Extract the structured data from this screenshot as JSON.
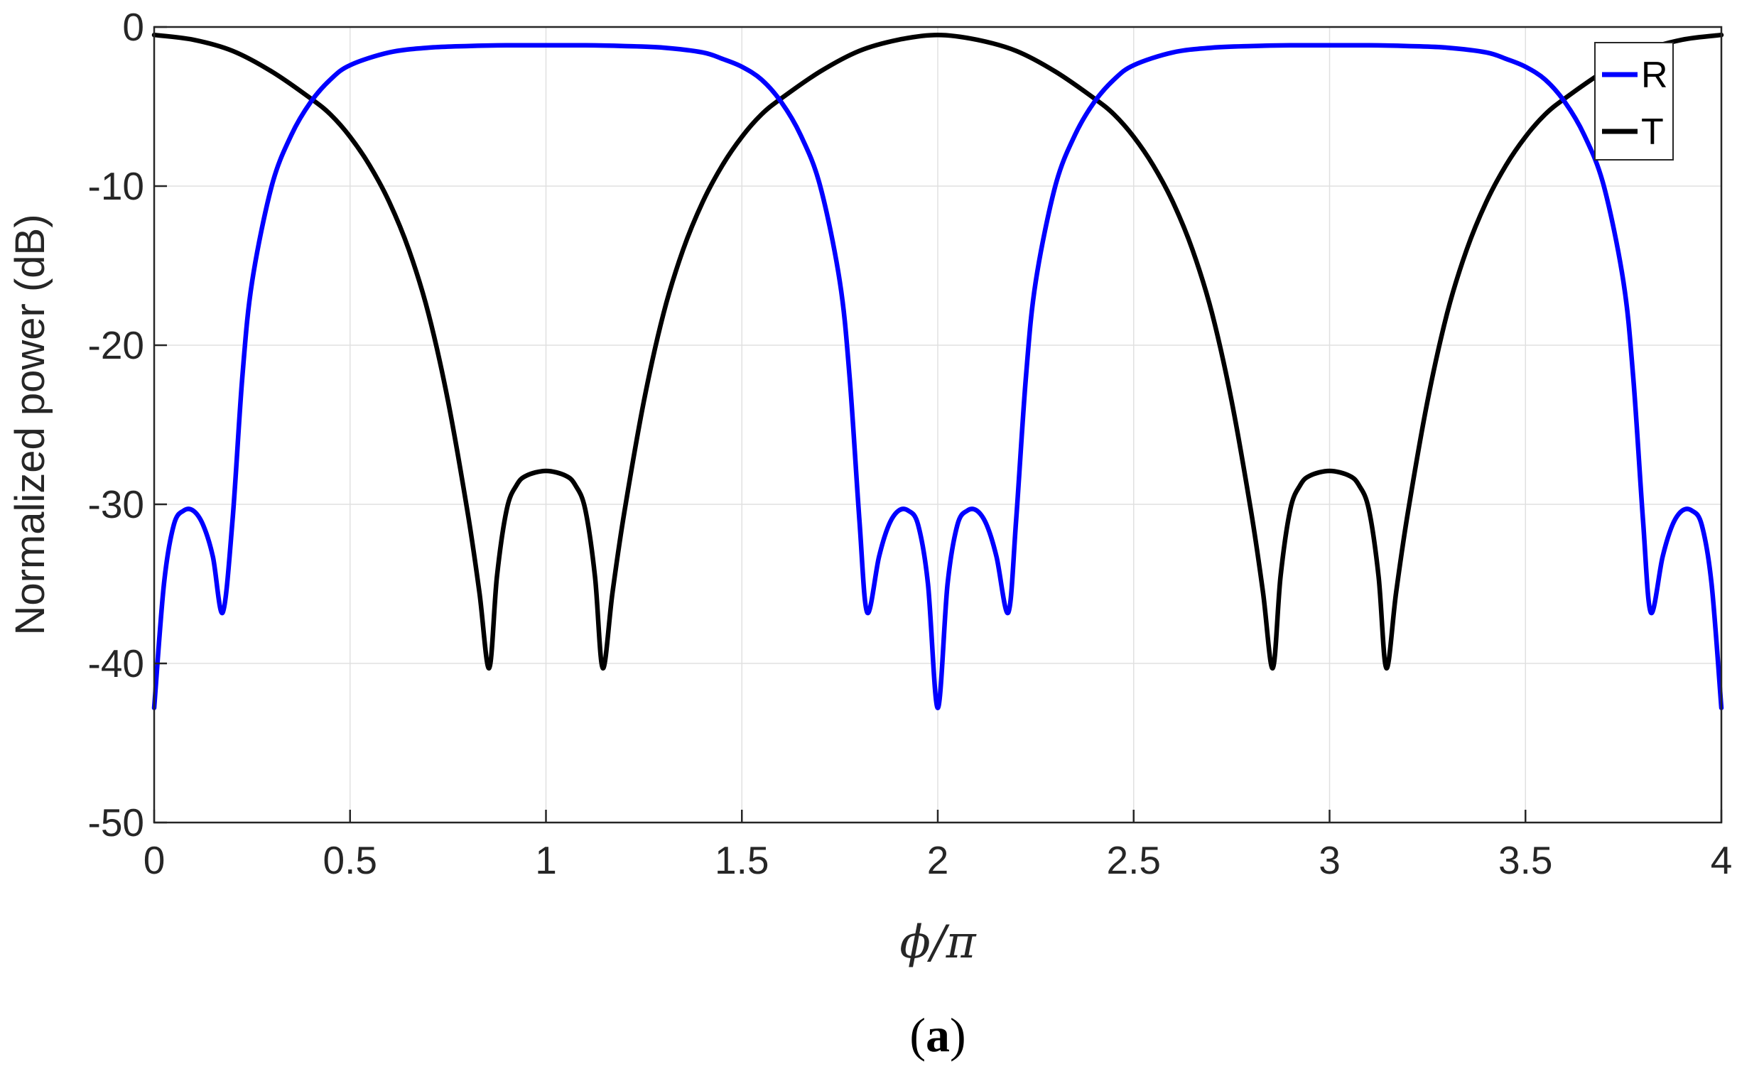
{
  "chart_data": {
    "type": "line",
    "xlabel": "ϕ/π",
    "ylabel": "Normalized power (dB)",
    "caption": {
      "open": "(",
      "letter": "a",
      "close": ")"
    },
    "xlim": [
      0,
      4
    ],
    "ylim": [
      -50,
      0
    ],
    "xticks": [
      {
        "value": 0,
        "label": "0"
      },
      {
        "value": 0.5,
        "label": "0.5"
      },
      {
        "value": 1,
        "label": "1"
      },
      {
        "value": 1.5,
        "label": "1.5"
      },
      {
        "value": 2,
        "label": "2"
      },
      {
        "value": 2.5,
        "label": "2.5"
      },
      {
        "value": 3,
        "label": "3"
      },
      {
        "value": 3.5,
        "label": "3.5"
      },
      {
        "value": 4,
        "label": "4"
      }
    ],
    "yticks": [
      {
        "value": 0,
        "label": "0"
      },
      {
        "value": -10,
        "label": "-10"
      },
      {
        "value": -20,
        "label": "-20"
      },
      {
        "value": -30,
        "label": "-30"
      },
      {
        "value": -40,
        "label": "-40"
      },
      {
        "value": -50,
        "label": "-50"
      }
    ],
    "grid": true,
    "legend_position": "top-right",
    "series": [
      {
        "name": "R",
        "color": "#0000ff",
        "x": [
          0,
          0.025,
          0.05,
          0.075,
          0.1,
          0.125,
          0.15,
          0.175,
          0.2,
          0.225,
          0.25,
          0.3,
          0.35,
          0.4,
          0.45,
          0.5,
          0.6,
          0.7,
          0.8,
          0.9,
          1.0,
          1.1,
          1.2,
          1.3,
          1.4,
          1.45,
          1.5,
          1.55,
          1.6,
          1.65,
          1.7,
          1.75,
          1.775,
          1.8,
          1.82,
          1.85,
          1.875,
          1.9,
          1.925,
          1.95,
          1.975,
          2.0,
          2.025,
          2.05,
          2.075,
          2.1,
          2.125,
          2.15,
          2.18,
          2.2,
          2.225,
          2.25,
          2.3,
          2.35,
          2.4,
          2.45,
          2.5,
          2.6,
          2.7,
          2.8,
          2.9,
          3.0,
          3.1,
          3.2,
          3.3,
          3.4,
          3.45,
          3.5,
          3.55,
          3.6,
          3.65,
          3.7,
          3.75,
          3.775,
          3.8,
          3.82,
          3.85,
          3.875,
          3.9,
          3.925,
          3.95,
          3.975,
          4.0
        ],
        "y": [
          -42.8,
          -35.0,
          -31.3,
          -30.4,
          -30.4,
          -31.3,
          -33.3,
          -36.8,
          -31.0,
          -22.0,
          -16.0,
          -10.0,
          -6.8,
          -4.7,
          -3.3,
          -2.4,
          -1.6,
          -1.3,
          -1.2,
          -1.15,
          -1.15,
          -1.15,
          -1.2,
          -1.3,
          -1.6,
          -2.0,
          -2.5,
          -3.3,
          -4.7,
          -6.8,
          -10.0,
          -16.0,
          -22.0,
          -31.0,
          -36.8,
          -33.3,
          -31.3,
          -30.4,
          -30.4,
          -31.3,
          -35.0,
          -42.8,
          -35.0,
          -31.3,
          -30.4,
          -30.4,
          -31.3,
          -33.3,
          -36.8,
          -31.0,
          -22.0,
          -16.0,
          -10.0,
          -6.8,
          -4.7,
          -3.3,
          -2.4,
          -1.6,
          -1.3,
          -1.2,
          -1.15,
          -1.15,
          -1.15,
          -1.2,
          -1.3,
          -1.6,
          -2.0,
          -2.5,
          -3.3,
          -4.7,
          -6.8,
          -10.0,
          -16.0,
          -22.0,
          -31.0,
          -36.8,
          -33.3,
          -31.3,
          -30.4,
          -30.4,
          -31.3,
          -35.0,
          -42.8
        ]
      },
      {
        "name": "T",
        "color": "#000000",
        "x": [
          0,
          0.1,
          0.2,
          0.3,
          0.4,
          0.45,
          0.5,
          0.55,
          0.6,
          0.65,
          0.7,
          0.75,
          0.8,
          0.83,
          0.855,
          0.875,
          0.9,
          0.925,
          0.95,
          1.0,
          1.05,
          1.075,
          1.1,
          1.125,
          1.145,
          1.17,
          1.2,
          1.25,
          1.3,
          1.35,
          1.4,
          1.45,
          1.5,
          1.55,
          1.6,
          1.7,
          1.8,
          1.9,
          2.0,
          2.1,
          2.2,
          2.3,
          2.4,
          2.45,
          2.5,
          2.55,
          2.6,
          2.65,
          2.7,
          2.75,
          2.8,
          2.83,
          2.855,
          2.875,
          2.9,
          2.925,
          2.95,
          3.0,
          3.05,
          3.075,
          3.1,
          3.125,
          3.145,
          3.17,
          3.2,
          3.25,
          3.3,
          3.35,
          3.4,
          3.45,
          3.5,
          3.55,
          3.6,
          3.7,
          3.8,
          3.9,
          4.0
        ],
        "y": [
          -0.5,
          -0.8,
          -1.5,
          -2.8,
          -4.5,
          -5.5,
          -6.9,
          -8.7,
          -11.0,
          -14.0,
          -18.0,
          -23.5,
          -30.5,
          -35.5,
          -40.3,
          -34.5,
          -30.3,
          -28.8,
          -28.2,
          -27.9,
          -28.2,
          -28.8,
          -30.3,
          -34.5,
          -40.3,
          -35.5,
          -30.5,
          -23.5,
          -18.0,
          -14.0,
          -11.0,
          -8.7,
          -6.9,
          -5.5,
          -4.5,
          -2.8,
          -1.5,
          -0.8,
          -0.5,
          -0.8,
          -1.5,
          -2.8,
          -4.5,
          -5.5,
          -6.9,
          -8.7,
          -11.0,
          -14.0,
          -18.0,
          -23.5,
          -30.5,
          -35.5,
          -40.3,
          -34.5,
          -30.3,
          -28.8,
          -28.2,
          -27.9,
          -28.2,
          -28.8,
          -30.3,
          -34.5,
          -40.3,
          -35.5,
          -30.5,
          -23.5,
          -18.0,
          -14.0,
          -11.0,
          -8.7,
          -6.9,
          -5.5,
          -4.5,
          -2.8,
          -1.5,
          -0.8,
          -0.5
        ]
      }
    ]
  }
}
